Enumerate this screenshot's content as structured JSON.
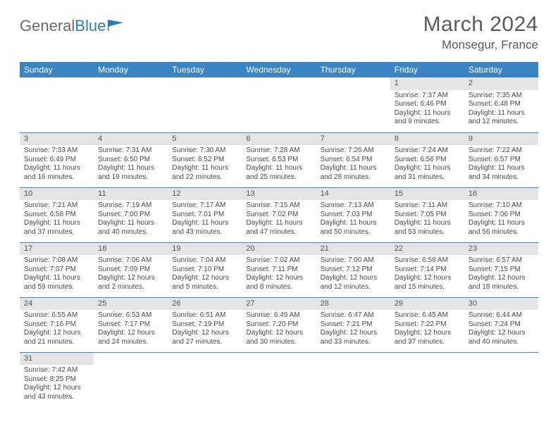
{
  "logo": {
    "part1": "General",
    "part2": "Blue"
  },
  "title": "March 2024",
  "location": "Monsegur, France",
  "header_bg": "#3b84c4",
  "daybar_bg": "#e4e4e4",
  "weekdays": [
    "Sunday",
    "Monday",
    "Tuesday",
    "Wednesday",
    "Thursday",
    "Friday",
    "Saturday"
  ],
  "weeks": [
    [
      null,
      null,
      null,
      null,
      null,
      {
        "n": "1",
        "sr": "Sunrise: 7:37 AM",
        "ss": "Sunset: 6:46 PM",
        "d1": "Daylight: 11 hours",
        "d2": "and 9 minutes."
      },
      {
        "n": "2",
        "sr": "Sunrise: 7:35 AM",
        "ss": "Sunset: 6:48 PM",
        "d1": "Daylight: 11 hours",
        "d2": "and 12 minutes."
      }
    ],
    [
      {
        "n": "3",
        "sr": "Sunrise: 7:33 AM",
        "ss": "Sunset: 6:49 PM",
        "d1": "Daylight: 11 hours",
        "d2": "and 16 minutes."
      },
      {
        "n": "4",
        "sr": "Sunrise: 7:31 AM",
        "ss": "Sunset: 6:50 PM",
        "d1": "Daylight: 11 hours",
        "d2": "and 19 minutes."
      },
      {
        "n": "5",
        "sr": "Sunrise: 7:30 AM",
        "ss": "Sunset: 6:52 PM",
        "d1": "Daylight: 11 hours",
        "d2": "and 22 minutes."
      },
      {
        "n": "6",
        "sr": "Sunrise: 7:28 AM",
        "ss": "Sunset: 6:53 PM",
        "d1": "Daylight: 11 hours",
        "d2": "and 25 minutes."
      },
      {
        "n": "7",
        "sr": "Sunrise: 7:26 AM",
        "ss": "Sunset: 6:54 PM",
        "d1": "Daylight: 11 hours",
        "d2": "and 28 minutes."
      },
      {
        "n": "8",
        "sr": "Sunrise: 7:24 AM",
        "ss": "Sunset: 6:56 PM",
        "d1": "Daylight: 11 hours",
        "d2": "and 31 minutes."
      },
      {
        "n": "9",
        "sr": "Sunrise: 7:22 AM",
        "ss": "Sunset: 6:57 PM",
        "d1": "Daylight: 11 hours",
        "d2": "and 34 minutes."
      }
    ],
    [
      {
        "n": "10",
        "sr": "Sunrise: 7:21 AM",
        "ss": "Sunset: 6:58 PM",
        "d1": "Daylight: 11 hours",
        "d2": "and 37 minutes."
      },
      {
        "n": "11",
        "sr": "Sunrise: 7:19 AM",
        "ss": "Sunset: 7:00 PM",
        "d1": "Daylight: 11 hours",
        "d2": "and 40 minutes."
      },
      {
        "n": "12",
        "sr": "Sunrise: 7:17 AM",
        "ss": "Sunset: 7:01 PM",
        "d1": "Daylight: 11 hours",
        "d2": "and 43 minutes."
      },
      {
        "n": "13",
        "sr": "Sunrise: 7:15 AM",
        "ss": "Sunset: 7:02 PM",
        "d1": "Daylight: 11 hours",
        "d2": "and 47 minutes."
      },
      {
        "n": "14",
        "sr": "Sunrise: 7:13 AM",
        "ss": "Sunset: 7:03 PM",
        "d1": "Daylight: 11 hours",
        "d2": "and 50 minutes."
      },
      {
        "n": "15",
        "sr": "Sunrise: 7:11 AM",
        "ss": "Sunset: 7:05 PM",
        "d1": "Daylight: 11 hours",
        "d2": "and 53 minutes."
      },
      {
        "n": "16",
        "sr": "Sunrise: 7:10 AM",
        "ss": "Sunset: 7:06 PM",
        "d1": "Daylight: 11 hours",
        "d2": "and 56 minutes."
      }
    ],
    [
      {
        "n": "17",
        "sr": "Sunrise: 7:08 AM",
        "ss": "Sunset: 7:07 PM",
        "d1": "Daylight: 11 hours",
        "d2": "and 59 minutes."
      },
      {
        "n": "18",
        "sr": "Sunrise: 7:06 AM",
        "ss": "Sunset: 7:09 PM",
        "d1": "Daylight: 12 hours",
        "d2": "and 2 minutes."
      },
      {
        "n": "19",
        "sr": "Sunrise: 7:04 AM",
        "ss": "Sunset: 7:10 PM",
        "d1": "Daylight: 12 hours",
        "d2": "and 5 minutes."
      },
      {
        "n": "20",
        "sr": "Sunrise: 7:02 AM",
        "ss": "Sunset: 7:11 PM",
        "d1": "Daylight: 12 hours",
        "d2": "and 8 minutes."
      },
      {
        "n": "21",
        "sr": "Sunrise: 7:00 AM",
        "ss": "Sunset: 7:12 PM",
        "d1": "Daylight: 12 hours",
        "d2": "and 12 minutes."
      },
      {
        "n": "22",
        "sr": "Sunrise: 6:58 AM",
        "ss": "Sunset: 7:14 PM",
        "d1": "Daylight: 12 hours",
        "d2": "and 15 minutes."
      },
      {
        "n": "23",
        "sr": "Sunrise: 6:57 AM",
        "ss": "Sunset: 7:15 PM",
        "d1": "Daylight: 12 hours",
        "d2": "and 18 minutes."
      }
    ],
    [
      {
        "n": "24",
        "sr": "Sunrise: 6:55 AM",
        "ss": "Sunset: 7:16 PM",
        "d1": "Daylight: 12 hours",
        "d2": "and 21 minutes."
      },
      {
        "n": "25",
        "sr": "Sunrise: 6:53 AM",
        "ss": "Sunset: 7:17 PM",
        "d1": "Daylight: 12 hours",
        "d2": "and 24 minutes."
      },
      {
        "n": "26",
        "sr": "Sunrise: 6:51 AM",
        "ss": "Sunset: 7:19 PM",
        "d1": "Daylight: 12 hours",
        "d2": "and 27 minutes."
      },
      {
        "n": "27",
        "sr": "Sunrise: 6:49 AM",
        "ss": "Sunset: 7:20 PM",
        "d1": "Daylight: 12 hours",
        "d2": "and 30 minutes."
      },
      {
        "n": "28",
        "sr": "Sunrise: 6:47 AM",
        "ss": "Sunset: 7:21 PM",
        "d1": "Daylight: 12 hours",
        "d2": "and 33 minutes."
      },
      {
        "n": "29",
        "sr": "Sunrise: 6:45 AM",
        "ss": "Sunset: 7:22 PM",
        "d1": "Daylight: 12 hours",
        "d2": "and 37 minutes."
      },
      {
        "n": "30",
        "sr": "Sunrise: 6:44 AM",
        "ss": "Sunset: 7:24 PM",
        "d1": "Daylight: 12 hours",
        "d2": "and 40 minutes."
      }
    ],
    [
      {
        "n": "31",
        "sr": "Sunrise: 7:42 AM",
        "ss": "Sunset: 8:25 PM",
        "d1": "Daylight: 12 hours",
        "d2": "and 43 minutes."
      },
      null,
      null,
      null,
      null,
      null,
      null
    ]
  ]
}
